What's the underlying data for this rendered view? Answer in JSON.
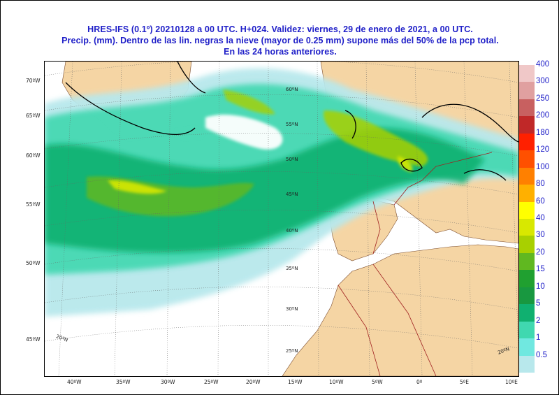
{
  "title": {
    "line1": "HRES-IFS (0.1º) 20210128 a 00 UTC.  H+024. Validez: viernes, 29 de enero de 2021,  a  00 UTC.",
    "line2": "Precip. (mm). Dentro de las lin. negras la nieve (mayor de 0.25 mm) supone más del 50% de la pcp total.",
    "line3": "En las 24 horas anteriores."
  },
  "colors": {
    "land": "#f5d5a4",
    "sea": "#ffffff",
    "border_line": "#a02020",
    "snow_line": "#000000",
    "text": "#1e1ec8"
  },
  "axis": {
    "left_labels": [
      "70ºW",
      "65ºW",
      "60ºW",
      "55ºW",
      "50ºW",
      "45ºW"
    ],
    "bottom_labels": [
      "40ºW",
      "35ºW",
      "30ºW",
      "25ºW",
      "20ºW",
      "15ºW",
      "10ºW",
      "5ºW",
      "0º",
      "5ºE",
      "10ºE"
    ],
    "inner_lat_labels": [
      "60ºN",
      "55ºN",
      "50ºN",
      "45ºN",
      "40ºN",
      "35ºN",
      "30ºN",
      "25ºN"
    ],
    "corner_labels": [
      "20ºN",
      "20ºN"
    ]
  },
  "legend": {
    "labels": [
      "400",
      "300",
      "250",
      "200",
      "180",
      "120",
      "100",
      "80",
      "60",
      "40",
      "30",
      "20",
      "15",
      "10",
      "5",
      "2",
      "1",
      "0.5"
    ],
    "colors": [
      "#f0c8c8",
      "#e0a0a0",
      "#c86060",
      "#c02828",
      "#ff2000",
      "#ff5000",
      "#ff8000",
      "#ffb000",
      "#ffff00",
      "#d8e800",
      "#a8d000",
      "#60b820",
      "#20a030",
      "#189840",
      "#10b070",
      "#40d8b0",
      "#70e8e0",
      "#b8e8ec"
    ]
  }
}
